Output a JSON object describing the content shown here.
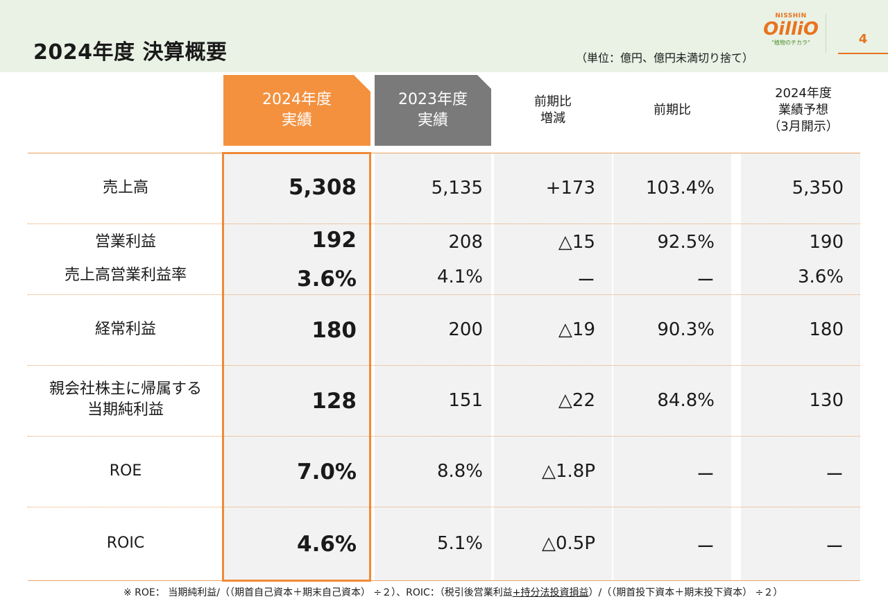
{
  "header": {
    "title": "2024年度 決算概要",
    "unit": "（単位：億円、億円未満切り捨て）",
    "logo": {
      "top": "NISSHIN",
      "main": "OilliO",
      "sub": "\"植物のチカラ\""
    },
    "page_number": "4"
  },
  "columns": {
    "c2024": "2024年度\n実績",
    "c2023": "2023年度\n実績",
    "diff": "前期比\n増減",
    "ratio": "前期比",
    "forecast": "2024年度\n業績予想\n（3月開示）"
  },
  "rows": [
    {
      "label": "売上高",
      "c2024": "5,308",
      "c2023": "5,135",
      "diff": "+173",
      "ratio": "103.4%",
      "forecast": "5,350"
    },
    {
      "label": "営業利益",
      "c2024": "192",
      "c2023": "208",
      "diff": "△15",
      "ratio": "92.5%",
      "forecast": "190"
    },
    {
      "label": "売上高営業利益率",
      "c2024": "3.6%",
      "c2023": "4.1%",
      "diff": "ー",
      "ratio": "ー",
      "forecast": "3.6%"
    },
    {
      "label": "経常利益",
      "c2024": "180",
      "c2023": "200",
      "diff": "△19",
      "ratio": "90.3%",
      "forecast": "180"
    },
    {
      "label": "親会社株主に帰属する\n当期純利益",
      "c2024": "128",
      "c2023": "151",
      "diff": "△22",
      "ratio": "84.8%",
      "forecast": "130"
    },
    {
      "label": "ROE",
      "c2024": "7.0%",
      "c2023": "8.8%",
      "diff": "△1.8P",
      "ratio": "ー",
      "forecast": "ー"
    },
    {
      "label": "ROIC",
      "c2024": "4.6%",
      "c2023": "5.1%",
      "diff": "△0.5P",
      "ratio": "ー",
      "forecast": "ー"
    }
  ],
  "footnote": {
    "part1": "※ ROE： 当期純利益/（（期首自己資本＋期末自己資本） ÷２）、ROIC：（税引後営業利益",
    "underlined": "+持分法投資損益",
    "part2": "）/（（期首投下資本＋期末投下資本） ÷２）"
  }
}
